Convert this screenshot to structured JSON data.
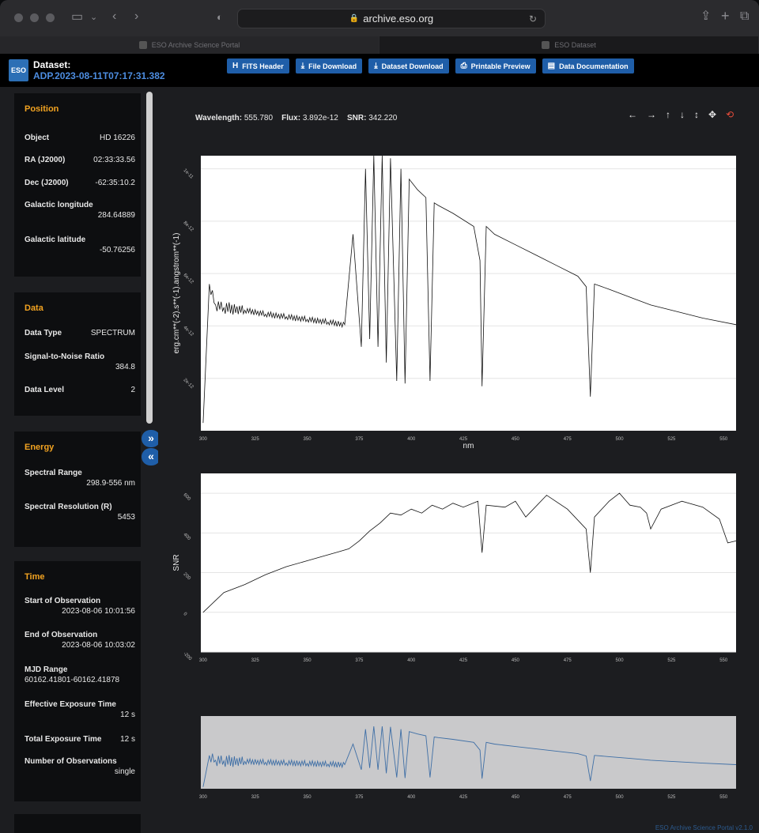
{
  "browser": {
    "url": "archive.eso.org",
    "tabs": [
      {
        "label": "ESO Archive Science Portal",
        "active": true
      },
      {
        "label": "ESO Dataset",
        "active": false
      }
    ]
  },
  "header": {
    "dataset_label": "Dataset:",
    "dataset_id": "ADP.2023-08-11T07:17:31.382",
    "logo_text": "ESO",
    "buttons": [
      {
        "label": "FITS Header",
        "icon": "header-icon"
      },
      {
        "label": "File Download",
        "icon": "download-icon"
      },
      {
        "label": "Dataset Download",
        "icon": "download-icon"
      },
      {
        "label": "Printable Preview",
        "icon": "print-icon"
      },
      {
        "label": "Data Documentation",
        "icon": "book-icon"
      }
    ]
  },
  "sidebar": {
    "position": {
      "title": "Position",
      "object_label": "Object",
      "object_value": "HD 16226",
      "ra_label": "RA (J2000)",
      "ra_value": "02:33:33.56",
      "dec_label": "Dec (J2000)",
      "dec_value": "-62:35:10.2",
      "glon_label": "Galactic longitude",
      "glon_value": "284.64889",
      "glat_label": "Galactic latitude",
      "glat_value": "-50.76256"
    },
    "data": {
      "title": "Data",
      "type_label": "Data Type",
      "type_value": "SPECTRUM",
      "snr_label": "Signal-to-Noise Ratio",
      "snr_value": "384.8",
      "level_label": "Data Level",
      "level_value": "2"
    },
    "energy": {
      "title": "Energy",
      "range_label": "Spectral Range",
      "range_value": "298.9-556 nm",
      "res_label": "Spectral Resolution (R)",
      "res_value": "5453"
    },
    "time": {
      "title": "Time",
      "start_label": "Start of Observation",
      "start_value": "2023-08-06 10:01:56",
      "end_label": "End of Observation",
      "end_value": "2023-08-06 10:03:02",
      "mjd_label": "MJD Range",
      "mjd_value": "60162.41801-60162.41878",
      "eff_label": "Effective Exposure Time",
      "eff_value": "12 s",
      "total_label": "Total Exposure Time",
      "total_value": "12 s",
      "nobs_label": "Number of Observations",
      "nobs_value": "single"
    },
    "expand_glyph": "»",
    "collapse_glyph": "«"
  },
  "main": {
    "readout": {
      "wl_label": "Wavelength:",
      "wl_value": "555.780",
      "flux_label": "Flux:",
      "flux_value": "3.892e-12",
      "snr_label": "SNR:",
      "snr_value": "342.220"
    },
    "controls": [
      "←",
      "→",
      "↑",
      "↓",
      "↕",
      "✥",
      "⟲"
    ],
    "footer": "ESO Archive Science Portal v2.1.0"
  },
  "chart_data": [
    {
      "type": "line",
      "name": "flux",
      "xlabel": "nm",
      "ylabel": "erg.cm**(-2).s**(-1).angstrom**(-1)",
      "xlim": [
        298.9,
        556
      ],
      "ylim": [
        0,
        1.05e-11
      ],
      "xticks": [
        300,
        325,
        350,
        375,
        400,
        425,
        450,
        475,
        500,
        525,
        550
      ],
      "yticks": [
        2e-12,
        4e-12,
        6e-12,
        8e-12,
        1e-11
      ],
      "ytick_labels": [
        "2e-12",
        "4e-12",
        "6e-12",
        "8e-12",
        "1e-11"
      ],
      "x": [
        300,
        303,
        306,
        310,
        320,
        330,
        340,
        350,
        360,
        368,
        372,
        376,
        378,
        380,
        382,
        384,
        386,
        388,
        390,
        393,
        395,
        397,
        399,
        403,
        407,
        409,
        411,
        413,
        420,
        430,
        433,
        434,
        436,
        440,
        450,
        460,
        470,
        480,
        484,
        486,
        488,
        495,
        505,
        515,
        525,
        540,
        556
      ],
      "y": [
        3e-13,
        5.6e-12,
        4.8e-12,
        4.7e-12,
        4.6e-12,
        4.45e-12,
        4.35e-12,
        4.25e-12,
        4.15e-12,
        4.05e-12,
        7.5e-12,
        3.2e-12,
        1e-11,
        3.5e-12,
        1.05e-11,
        3.2e-12,
        1.05e-11,
        2.6e-12,
        1.04e-11,
        1.9e-12,
        1e-11,
        1.8e-12,
        9.6e-12,
        9.2e-12,
        8.9e-12,
        1.9e-12,
        8.7e-12,
        8.6e-12,
        8.3e-12,
        7.8e-12,
        6.5e-12,
        1.7e-12,
        7.8e-12,
        7.5e-12,
        7.1e-12,
        6.7e-12,
        6.3e-12,
        5.9e-12,
        5.5e-12,
        1.3e-12,
        5.6e-12,
        5.4e-12,
        5.1e-12,
        4.8e-12,
        4.6e-12,
        4.3e-12,
        4.05e-12
      ]
    },
    {
      "type": "line",
      "name": "snr",
      "ylabel": "SNR",
      "xlim": [
        298.9,
        556
      ],
      "ylim": [
        -200,
        700
      ],
      "xticks": [
        300,
        325,
        350,
        375,
        400,
        425,
        450,
        475,
        500,
        525,
        550
      ],
      "yticks": [
        -200,
        0,
        200,
        400,
        600
      ],
      "x": [
        300,
        305,
        310,
        320,
        330,
        340,
        350,
        360,
        365,
        370,
        375,
        380,
        385,
        390,
        395,
        400,
        405,
        410,
        415,
        420,
        425,
        432,
        434,
        436,
        445,
        450,
        455,
        465,
        475,
        484,
        486,
        488,
        495,
        500,
        505,
        510,
        513,
        515,
        520,
        530,
        540,
        548,
        552,
        556
      ],
      "y": [
        0,
        50,
        100,
        140,
        190,
        230,
        260,
        290,
        305,
        320,
        360,
        410,
        450,
        500,
        490,
        520,
        500,
        540,
        520,
        550,
        530,
        560,
        300,
        540,
        530,
        560,
        480,
        590,
        520,
        420,
        200,
        480,
        560,
        600,
        540,
        530,
        500,
        420,
        520,
        560,
        530,
        470,
        350,
        360
      ]
    },
    {
      "type": "line",
      "name": "overview",
      "xlim": [
        298.9,
        556
      ],
      "xticks": [
        300,
        325,
        350,
        375,
        400,
        425,
        450,
        475,
        500,
        525,
        550
      ]
    }
  ]
}
